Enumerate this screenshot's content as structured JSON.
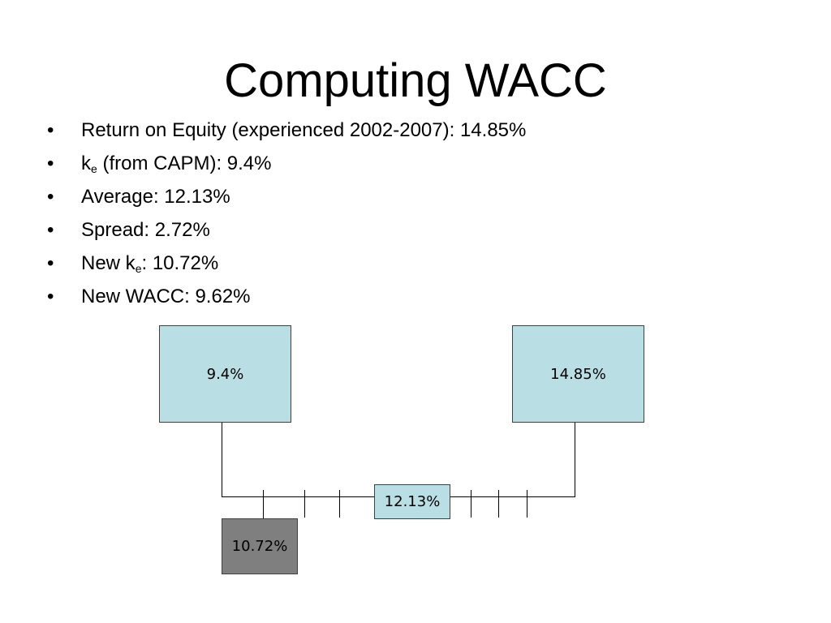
{
  "slide": {
    "title": "Computing WACC"
  },
  "bullets": [
    {
      "bullet": "•",
      "text": "Return on Equity (experienced 2002-2007): 14.85%"
    },
    {
      "bullet": "•",
      "pre": "k",
      "sub": "e",
      "post": " (from CAPM): 9.4%"
    },
    {
      "bullet": "•",
      "text": "Average: 12.13%"
    },
    {
      "bullet": "•",
      "text": "Spread: 2.72%"
    },
    {
      "bullet": "•",
      "pre": "New k",
      "sub": "e",
      "post": ": 10.72%"
    },
    {
      "bullet": "•",
      "text": "New WACC: 9.62%"
    }
  ],
  "diagram": {
    "left_box": "9.4%",
    "right_box": "14.85%",
    "middle_box": "12.13%",
    "result_box": "10.72%",
    "colors": {
      "box_fill": "#b9dfe4",
      "result_fill": "#7f7f7f",
      "line": "#000000"
    }
  }
}
